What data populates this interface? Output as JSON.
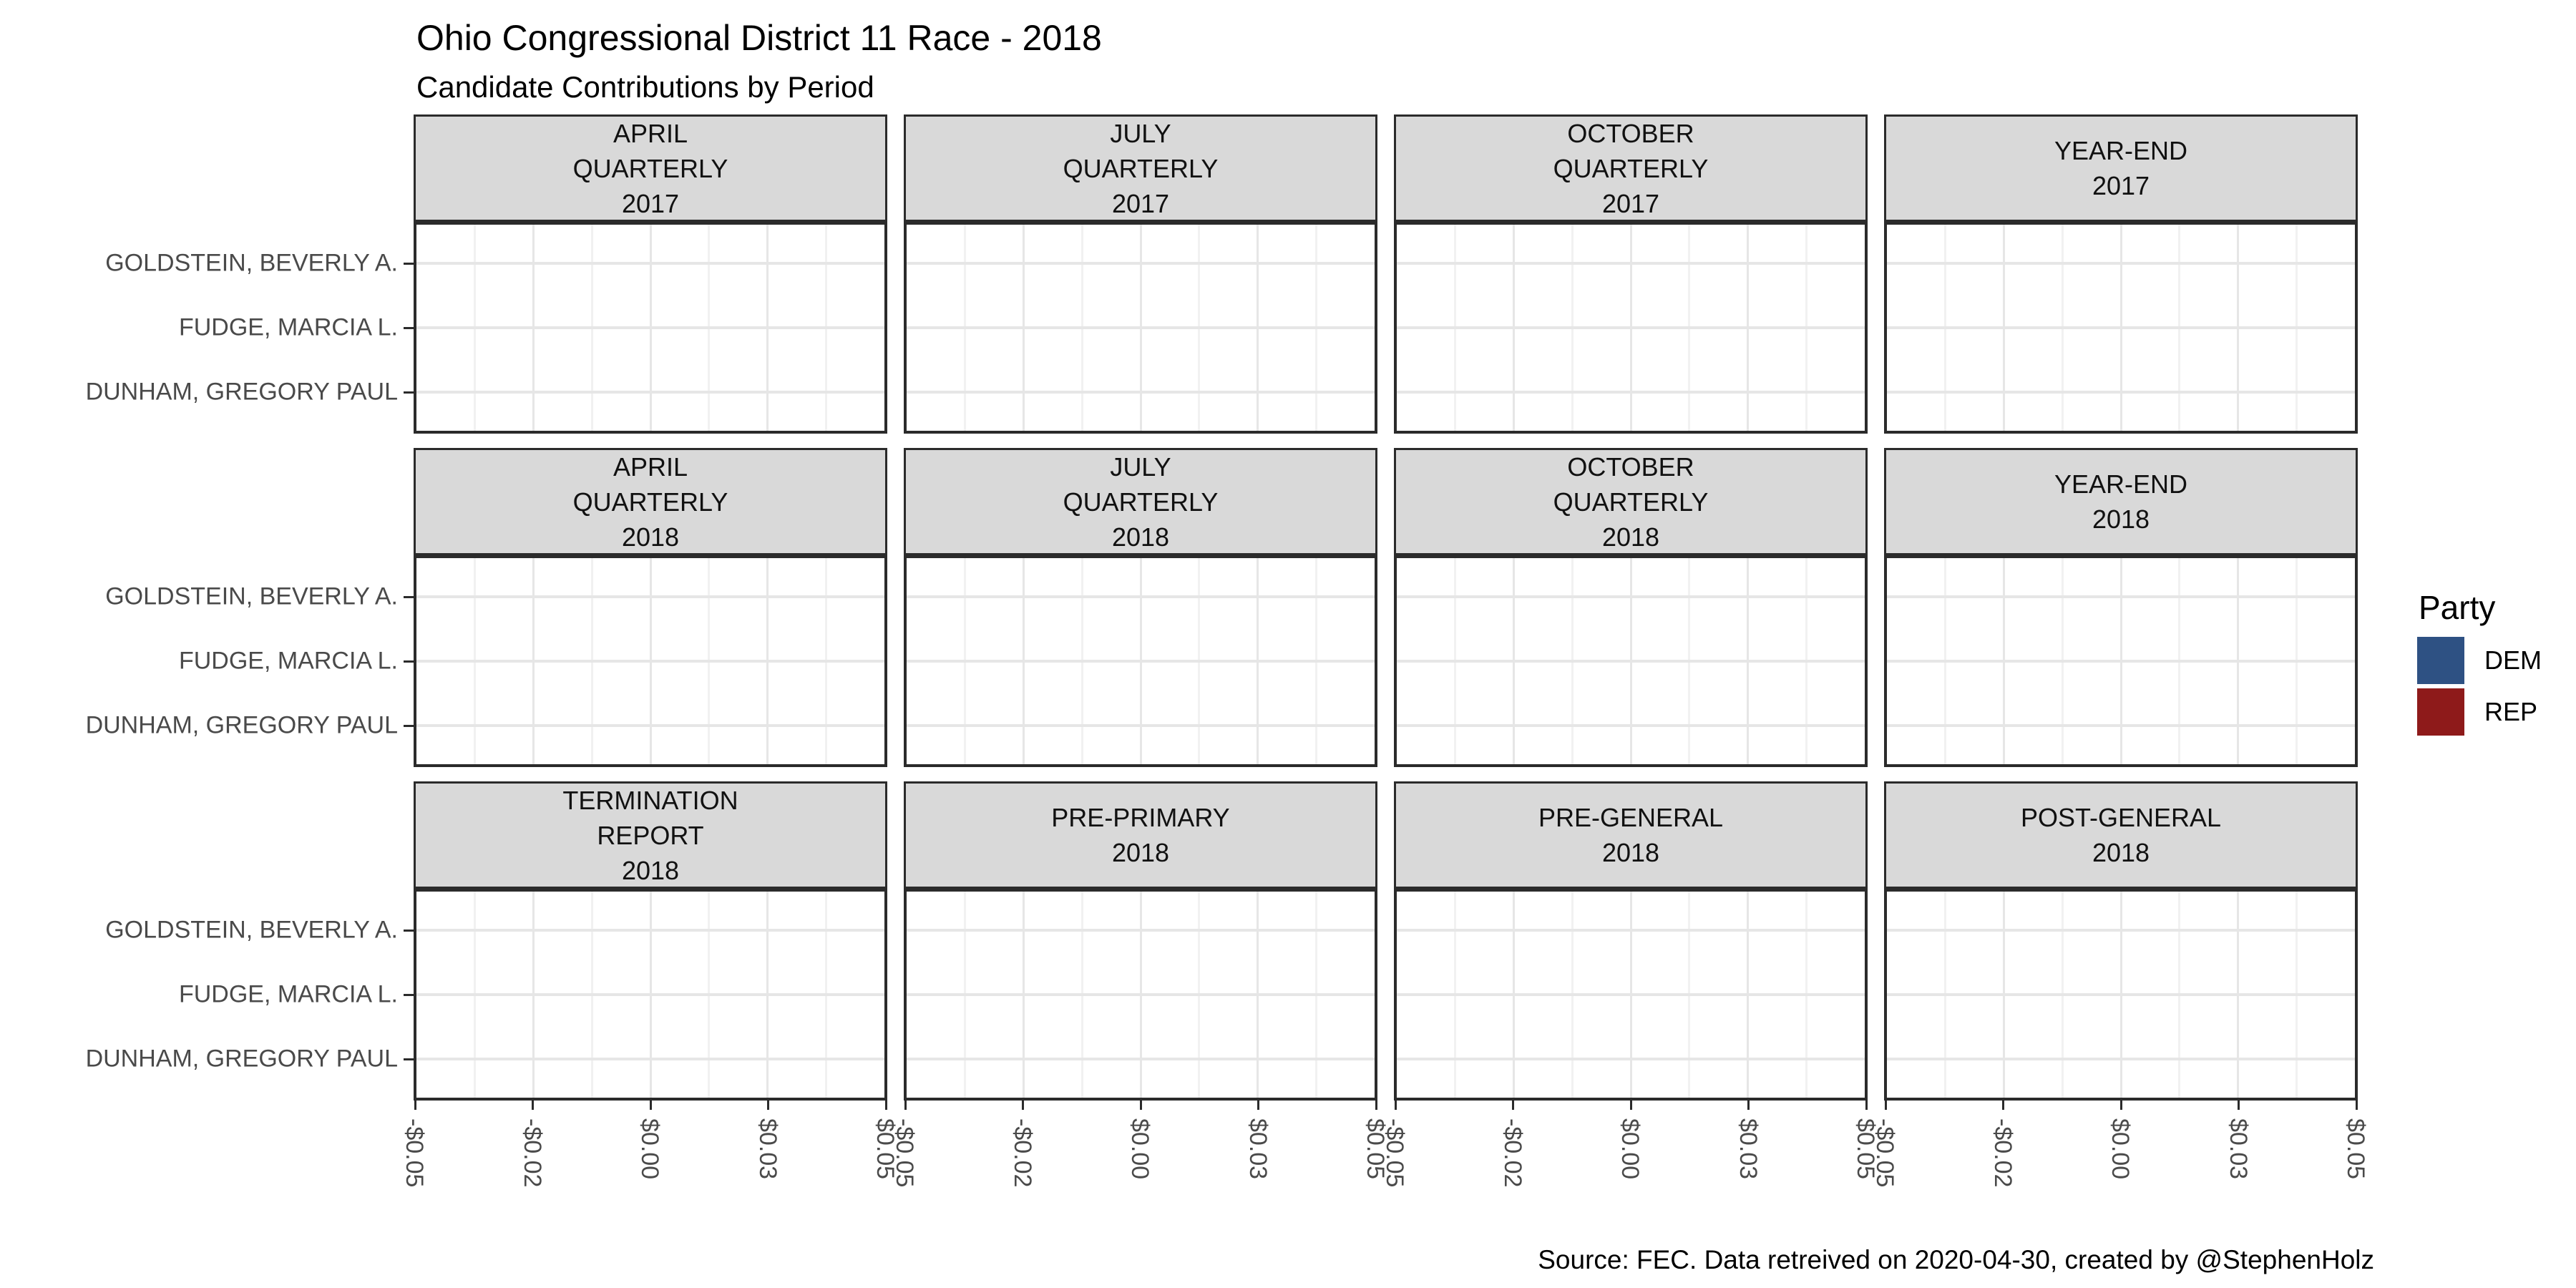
{
  "header": {
    "title": "Ohio Congressional District 11 Race - 2018",
    "subtitle": "Candidate Contributions by Period"
  },
  "caption": "Source: FEC. Data retreived on 2020-04-30, created by @StephenHolz",
  "legend": {
    "title": "Party",
    "items": [
      {
        "label": "DEM",
        "color": "#2E5183"
      },
      {
        "label": "REP",
        "color": "#8E1A1A"
      }
    ]
  },
  "y_axis": {
    "candidates": [
      "GOLDSTEIN, BEVERLY A.",
      "FUDGE, MARCIA L.",
      "DUNHAM, GREGORY PAUL"
    ]
  },
  "x_axis": {
    "tick_labels": [
      "-$0.05",
      "-$0.02",
      "$0.00",
      "$0.03",
      "$0.05"
    ]
  },
  "facets": {
    "rows": [
      [
        {
          "lines": [
            "APRIL",
            "QUARTERLY",
            "2017"
          ]
        },
        {
          "lines": [
            "JULY",
            "QUARTERLY",
            "2017"
          ]
        },
        {
          "lines": [
            "OCTOBER",
            "QUARTERLY",
            "2017"
          ]
        },
        {
          "lines": [
            "YEAR-END",
            "2017"
          ]
        }
      ],
      [
        {
          "lines": [
            "APRIL",
            "QUARTERLY",
            "2018"
          ]
        },
        {
          "lines": [
            "JULY",
            "QUARTERLY",
            "2018"
          ]
        },
        {
          "lines": [
            "OCTOBER",
            "QUARTERLY",
            "2018"
          ]
        },
        {
          "lines": [
            "YEAR-END",
            "2018"
          ]
        }
      ],
      [
        {
          "lines": [
            "TERMINATION",
            "REPORT",
            "2018"
          ]
        },
        {
          "lines": [
            "PRE-PRIMARY",
            "2018"
          ]
        },
        {
          "lines": [
            "PRE-GENERAL",
            "2018"
          ]
        },
        {
          "lines": [
            "POST-GENERAL",
            "2018"
          ]
        }
      ]
    ]
  },
  "chart_data": {
    "type": "bar",
    "orientation": "horizontal",
    "title": "Ohio Congressional District 11 Race - 2018",
    "subtitle": "Candidate Contributions by Period",
    "caption": "Source: FEC. Data retreived on 2020-04-30, created by @StephenHolz",
    "facets": [
      "APRIL QUARTERLY 2017",
      "JULY QUARTERLY 2017",
      "OCTOBER QUARTERLY 2017",
      "YEAR-END 2017",
      "APRIL QUARTERLY 2018",
      "JULY QUARTERLY 2018",
      "OCTOBER QUARTERLY 2018",
      "YEAR-END 2018",
      "TERMINATION REPORT 2018",
      "PRE-PRIMARY 2018",
      "PRE-GENERAL 2018",
      "POST-GENERAL 2018"
    ],
    "categories": [
      "GOLDSTEIN, BEVERLY A.",
      "FUDGE, MARCIA L.",
      "DUNHAM, GREGORY PAUL"
    ],
    "series": [
      {
        "name": "DEM",
        "color": "#2E5183"
      },
      {
        "name": "REP",
        "color": "#8E1A1A"
      }
    ],
    "values": "all panels empty - every candidate contribution value is $0.00 (no visible bars)",
    "xlim": [
      -0.05,
      0.05
    ],
    "x_ticks": [
      -0.05,
      -0.025,
      0,
      0.025,
      0.05
    ],
    "x_tick_labels": [
      "-$0.05",
      "-$0.02",
      "$0.00",
      "$0.03",
      "$0.05"
    ],
    "grid": true,
    "legend_position": "right",
    "facet_strip_background": "#d9d9d9",
    "panel_border_color": "#2b2b2b"
  }
}
